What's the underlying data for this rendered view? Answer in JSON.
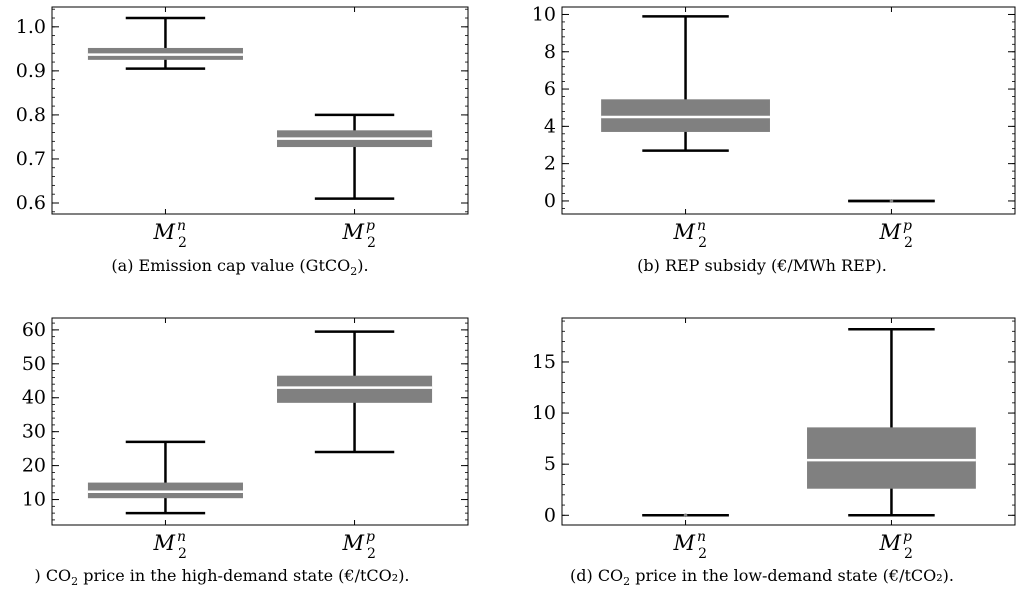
{
  "chart_data": [
    {
      "type": "box",
      "caption": {
        "prefix": "(a) Emission cap value (GtCO",
        "sub": "2",
        "suffix": ")."
      },
      "categories": [
        {
          "base": "M",
          "sub": "2",
          "sup": "n"
        },
        {
          "base": "M",
          "sub": "2",
          "sup": "p"
        }
      ],
      "boxes": [
        {
          "whisker_low": 0.905,
          "q1": 0.925,
          "median": 0.937,
          "q3": 0.952,
          "whisker_high": 1.02
        },
        {
          "whisker_low": 0.61,
          "q1": 0.727,
          "median": 0.746,
          "q3": 0.765,
          "whisker_high": 0.8
        }
      ],
      "ylim": [
        0.575,
        1.045
      ],
      "yticks": [
        0.6,
        0.7,
        0.8,
        0.9,
        1.0
      ],
      "ytick_labels": [
        "0.6",
        "0.7",
        "0.8",
        "0.9",
        "1.0"
      ],
      "minor_step": 0.02,
      "xlim": [
        0.4,
        2.6
      ],
      "box_color": "#808080",
      "median_color": "#ffffff"
    },
    {
      "type": "box",
      "caption": {
        "prefix": "(b) REP subsidy (€/MWh REP).",
        "sub": "",
        "suffix": ""
      },
      "categories": [
        {
          "base": "M",
          "sub": "2",
          "sup": "n"
        },
        {
          "base": "M",
          "sub": "2",
          "sup": "p"
        }
      ],
      "boxes": [
        {
          "whisker_low": 2.7,
          "q1": 3.7,
          "median": 4.5,
          "q3": 5.45,
          "whisker_high": 9.9
        },
        {
          "whisker_low": 0.0,
          "q1": 0.0,
          "median": 0.0,
          "q3": 0.0,
          "whisker_high": 0.0
        }
      ],
      "ylim": [
        -0.7,
        10.4
      ],
      "yticks": [
        0,
        2,
        4,
        6,
        8,
        10
      ],
      "ytick_labels": [
        "0",
        "2",
        "4",
        "6",
        "8",
        "10"
      ],
      "minor_step": 0.4,
      "xlim": [
        0.4,
        2.6
      ],
      "box_color": "#808080",
      "median_color": "#ffffff"
    },
    {
      "type": "box",
      "caption": {
        "prefix": ") CO",
        "sub": "2",
        "suffix": " price in the high-demand state (€/tCO₂)."
      },
      "categories": [
        {
          "base": "M",
          "sub": "2",
          "sup": "n"
        },
        {
          "base": "M",
          "sub": "2",
          "sup": "p"
        }
      ],
      "boxes": [
        {
          "whisker_low": 6.0,
          "q1": 10.4,
          "median": 12.3,
          "q3": 15.0,
          "whisker_high": 27.0
        },
        {
          "whisker_low": 24.0,
          "q1": 38.5,
          "median": 43.0,
          "q3": 46.5,
          "whisker_high": 59.5
        }
      ],
      "ylim": [
        2.5,
        63.5
      ],
      "yticks": [
        10,
        20,
        30,
        40,
        50,
        60
      ],
      "ytick_labels": [
        "10",
        "20",
        "30",
        "40",
        "50",
        "60"
      ],
      "minor_step": 2,
      "xlim": [
        0.4,
        2.6
      ],
      "box_color": "#808080",
      "median_color": "#ffffff"
    },
    {
      "type": "box",
      "caption": {
        "prefix": "(d) CO",
        "sub": "2",
        "suffix": " price in the low-demand state (€/tCO₂)."
      },
      "categories": [
        {
          "base": "M",
          "sub": "2",
          "sup": "n"
        },
        {
          "base": "M",
          "sub": "2",
          "sup": "p"
        }
      ],
      "boxes": [
        {
          "whisker_low": 0.0,
          "q1": 0.0,
          "median": 0.0,
          "q3": 0.0,
          "whisker_high": 0.0
        },
        {
          "whisker_low": 0.0,
          "q1": 2.6,
          "median": 5.4,
          "q3": 8.6,
          "whisker_high": 18.2
        }
      ],
      "ylim": [
        -0.95,
        19.3
      ],
      "yticks": [
        0,
        5,
        10,
        15
      ],
      "ytick_labels": [
        "0",
        "5",
        "10",
        "15"
      ],
      "minor_step": 1,
      "xlim": [
        0.4,
        2.6
      ],
      "box_color": "#808080",
      "median_color": "#ffffff"
    }
  ]
}
